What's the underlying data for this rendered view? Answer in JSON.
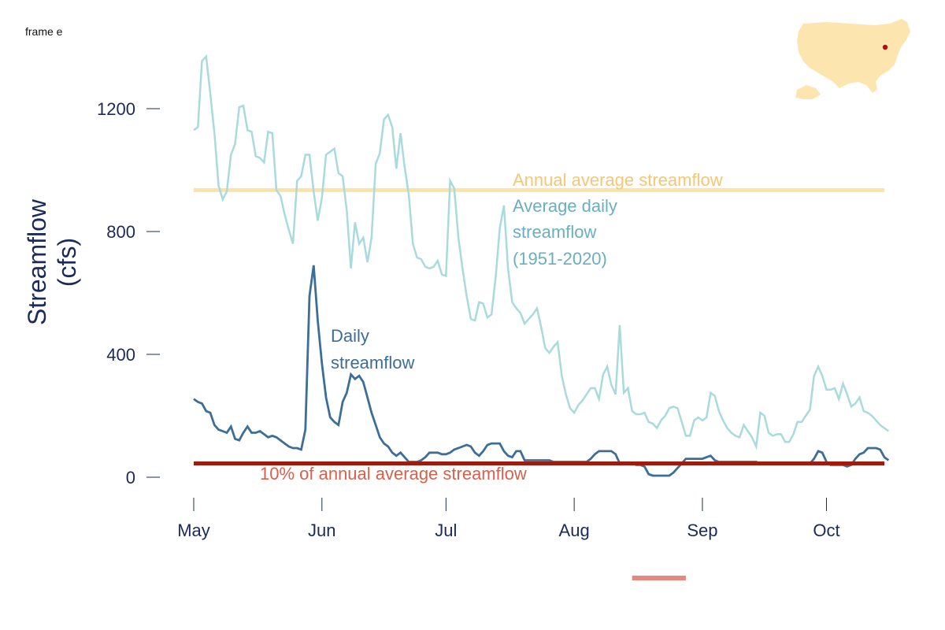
{
  "frame_label": "frame e",
  "colors": {
    "daily": "#3d6e96",
    "avg_daily": "#a8dade",
    "annual_avg": "#fbe3a8",
    "ten_pct": "#9e1b0e",
    "ten_pct_text": "#d9604a",
    "avg_text": "#6aafc0",
    "annual_text": "#f5c774",
    "axis_text": "#1b2a5a",
    "highlight": "#e8877c",
    "map_fill": "#fde5b0",
    "map_dot": "#b01010"
  },
  "chart_data": {
    "type": "line",
    "xlabel": "",
    "ylabel_lines": [
      "Streamflow",
      "(cfs)"
    ],
    "ylim": [
      -75,
      1450
    ],
    "xlim": [
      0,
      167
    ],
    "y_ticks": [
      0,
      400,
      800,
      1200
    ],
    "y_tick_labels": [
      "0",
      "400",
      "800",
      "1200"
    ],
    "x_ticks": [
      0,
      31,
      61,
      92,
      123,
      153
    ],
    "x_tick_labels": [
      "May",
      "Jun",
      "Jul",
      "Aug",
      "Sep",
      "Oct"
    ],
    "annual_average": 935,
    "ten_percent_annual_average": 45,
    "highlight_range": [
      106,
      119
    ],
    "annotations": {
      "annual": "Annual average streamflow",
      "avg_daily": [
        "Average daily",
        "streamflow",
        "(1951-2020)"
      ],
      "daily": [
        "Daily",
        "streamflow"
      ],
      "ten_pct": "10% of annual average streamflow"
    },
    "series": [
      {
        "key": "avg_daily",
        "values": [
          1130,
          1140,
          1355,
          1370,
          1250,
          1120,
          950,
          905,
          930,
          1050,
          1085,
          1205,
          1210,
          1130,
          1125,
          1045,
          1040,
          1025,
          1125,
          1120,
          935,
          915,
          855,
          805,
          760,
          965,
          980,
          1050,
          1050,
          930,
          835,
          910,
          1050,
          1060,
          1070,
          990,
          980,
          870,
          680,
          830,
          760,
          780,
          700,
          780,
          1020,
          1055,
          1165,
          1180,
          1140,
          1005,
          1120,
          1010,
          920,
          760,
          715,
          710,
          685,
          680,
          685,
          705,
          660,
          655,
          965,
          940,
          780,
          680,
          590,
          515,
          510,
          570,
          565,
          520,
          530,
          650,
          810,
          885,
          680,
          570,
          550,
          535,
          500,
          515,
          530,
          550,
          490,
          420,
          405,
          425,
          440,
          330,
          270,
          225,
          210,
          235,
          250,
          270,
          290,
          290,
          255,
          335,
          360,
          300,
          270,
          495,
          275,
          290,
          215,
          205,
          205,
          210,
          180,
          175,
          160,
          185,
          200,
          225,
          230,
          225,
          180,
          135,
          135,
          185,
          195,
          185,
          195,
          275,
          265,
          215,
          185,
          160,
          145,
          135,
          130,
          170,
          150,
          130,
          100,
          210,
          200,
          145,
          135,
          140,
          140,
          115,
          115,
          140,
          180,
          180,
          200,
          220,
          330,
          360,
          330,
          285,
          285,
          290,
          255,
          305,
          270,
          230,
          240,
          260,
          215,
          210,
          200,
          185,
          170,
          160,
          150
        ],
        "name": ""
      },
      {
        "key": "daily",
        "values": [
          255,
          245,
          240,
          215,
          210,
          170,
          155,
          150,
          145,
          165,
          125,
          120,
          145,
          165,
          145,
          145,
          150,
          140,
          130,
          135,
          130,
          120,
          110,
          100,
          95,
          95,
          90,
          155,
          590,
          690,
          510,
          370,
          260,
          195,
          180,
          170,
          245,
          275,
          335,
          320,
          330,
          310,
          260,
          210,
          170,
          130,
          110,
          100,
          80,
          70,
          80,
          65,
          50,
          50,
          50,
          55,
          65,
          80,
          80,
          80,
          75,
          75,
          80,
          90,
          95,
          100,
          105,
          100,
          80,
          70,
          85,
          105,
          110,
          110,
          110,
          85,
          70,
          65,
          85,
          85,
          55,
          55,
          55,
          55,
          55,
          55,
          55,
          50,
          50,
          50,
          50,
          50,
          50,
          50,
          50,
          50,
          60,
          75,
          85,
          85,
          85,
          85,
          75,
          45,
          45,
          45,
          45,
          40,
          40,
          35,
          10,
          5,
          5,
          5,
          5,
          5,
          15,
          30,
          45,
          60,
          60,
          60,
          60,
          60,
          65,
          70,
          55,
          50,
          50,
          50,
          50,
          50,
          50,
          50,
          50,
          50,
          50,
          45,
          45,
          45,
          45,
          45,
          45,
          45,
          45,
          45,
          45,
          45,
          45,
          45,
          60,
          85,
          80,
          50,
          40,
          40,
          40,
          40,
          35,
          40,
          60,
          75,
          80,
          95,
          95,
          95,
          90,
          65,
          55
        ],
        "name": ""
      }
    ]
  }
}
